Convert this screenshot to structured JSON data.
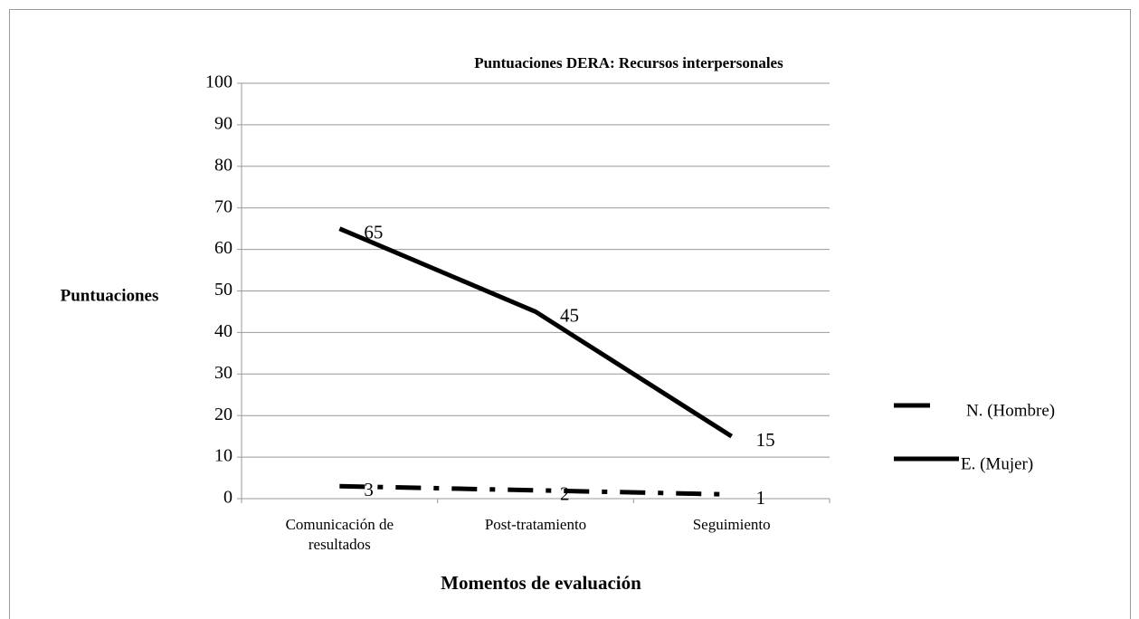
{
  "chart_data": {
    "type": "line",
    "title": "Puntuaciones DERA: Recursos interpersonales",
    "y_label": "Puntuaciones",
    "x_label": "Momentos de evaluación",
    "categories": [
      "Comunicación de resultados",
      "Post-tratamiento",
      "Seguimiento"
    ],
    "series": [
      {
        "name": "N. (Hombre)",
        "color": "#000000",
        "dash": "dash-dot",
        "values": [
          3,
          2,
          1
        ]
      },
      {
        "name": "E. (Mujer)",
        "color": "#000000",
        "dash": "solid",
        "values": [
          65,
          45,
          15
        ]
      }
    ],
    "ylim": [
      0,
      100
    ],
    "yticks": [
      0,
      10,
      20,
      30,
      40,
      50,
      60,
      70,
      80,
      90,
      100
    ],
    "grid": true,
    "legend": "right",
    "data_labels": true
  }
}
